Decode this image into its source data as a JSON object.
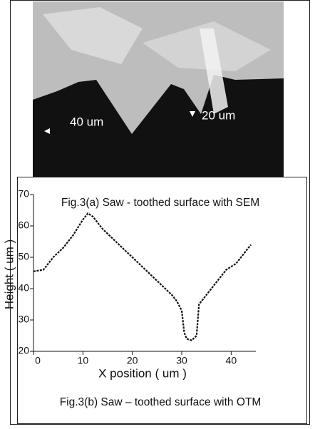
{
  "sem_image": {
    "labels": [
      "40 um",
      "20 um"
    ],
    "caption": "Fig.3(a) Saw - toothed surface with SEM"
  },
  "chart_data": {
    "type": "line",
    "x_label": "X position ( um )",
    "y_label": "Height ( um )",
    "caption": "Fig.3(b) Saw – toothed surface with OTM",
    "x": [
      0,
      2,
      4,
      6,
      8,
      10,
      11,
      12,
      14,
      16,
      18,
      20,
      22,
      24,
      26,
      28,
      29,
      30,
      30.5,
      31,
      32,
      33,
      33.5,
      35,
      37,
      39,
      41,
      43,
      44
    ],
    "series": [
      {
        "color": "#111111",
        "values": [
          45.5,
          46,
          50,
          53,
          57,
          62,
          64,
          63,
          59,
          56,
          53,
          50,
          47,
          44,
          41,
          38,
          36,
          33,
          26,
          24,
          23.5,
          25,
          35,
          38,
          42,
          46,
          48,
          52,
          54
        ]
      }
    ],
    "xlim": [
      0,
      45
    ],
    "ylim": [
      20,
      70
    ],
    "xticks": [
      0,
      10,
      20,
      30,
      40
    ],
    "yticks": [
      20,
      30,
      40,
      50,
      60,
      70
    ]
  }
}
